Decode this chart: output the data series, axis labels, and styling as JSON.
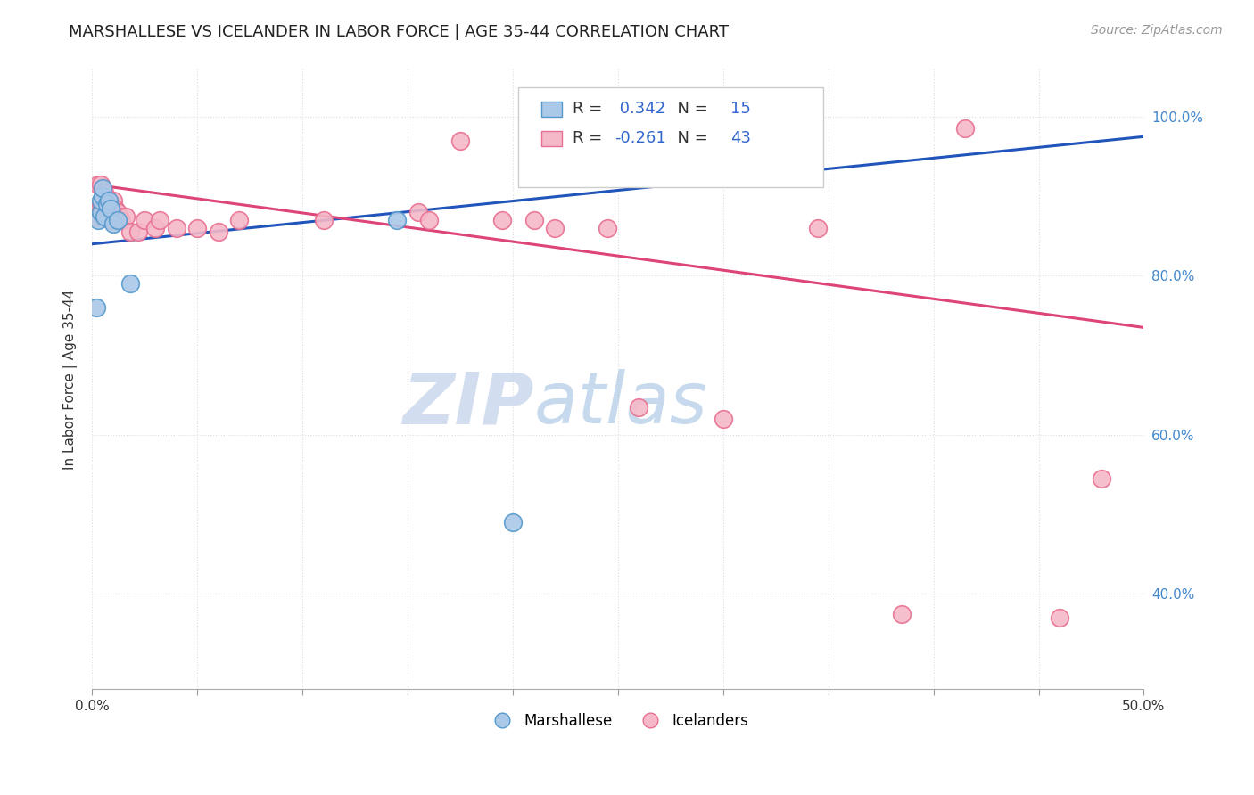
{
  "title": "MARSHALLESE VS ICELANDER IN LABOR FORCE | AGE 35-44 CORRELATION CHART",
  "source": "Source: ZipAtlas.com",
  "ylabel": "In Labor Force | Age 35-44",
  "xlim": [
    0.0,
    0.5
  ],
  "ylim": [
    0.28,
    1.06
  ],
  "yticks": [
    0.4,
    0.6,
    0.8,
    1.0
  ],
  "ytick_labels": [
    "40.0%",
    "60.0%",
    "80.0%",
    "100.0%"
  ],
  "xticks": [
    0.0,
    0.05,
    0.1,
    0.15,
    0.2,
    0.25,
    0.3,
    0.35,
    0.4,
    0.45,
    0.5
  ],
  "xtick_labels": [
    "0.0%",
    "",
    "",
    "",
    "",
    "",
    "",
    "",
    "",
    "",
    "50.0%"
  ],
  "marshallese_x": [
    0.002,
    0.003,
    0.004,
    0.004,
    0.005,
    0.005,
    0.006,
    0.007,
    0.008,
    0.009,
    0.01,
    0.012,
    0.018,
    0.145,
    0.2
  ],
  "marshallese_y": [
    0.76,
    0.87,
    0.88,
    0.895,
    0.9,
    0.91,
    0.875,
    0.89,
    0.895,
    0.885,
    0.865,
    0.87,
    0.79,
    0.87,
    0.49
  ],
  "icelander_x": [
    0.001,
    0.002,
    0.003,
    0.004,
    0.004,
    0.005,
    0.005,
    0.006,
    0.006,
    0.007,
    0.008,
    0.008,
    0.009,
    0.01,
    0.011,
    0.012,
    0.013,
    0.014,
    0.016,
    0.018,
    0.022,
    0.025,
    0.03,
    0.032,
    0.04,
    0.05,
    0.06,
    0.07,
    0.11,
    0.155,
    0.16,
    0.175,
    0.195,
    0.21,
    0.22,
    0.245,
    0.26,
    0.3,
    0.345,
    0.385,
    0.415,
    0.46,
    0.48
  ],
  "icelander_y": [
    0.885,
    0.875,
    0.915,
    0.89,
    0.915,
    0.875,
    0.895,
    0.88,
    0.905,
    0.88,
    0.88,
    0.895,
    0.87,
    0.895,
    0.885,
    0.88,
    0.875,
    0.87,
    0.875,
    0.855,
    0.855,
    0.87,
    0.86,
    0.87,
    0.86,
    0.86,
    0.855,
    0.87,
    0.87,
    0.88,
    0.87,
    0.97,
    0.87,
    0.87,
    0.86,
    0.86,
    0.635,
    0.62,
    0.86,
    0.375,
    0.985,
    0.37,
    0.545
  ],
  "marshallese_color": "#aac8e8",
  "marshallese_edge_color": "#5599cc",
  "icelander_color": "#f5b8c8",
  "icelander_edge_color": "#e87090",
  "blue_line_x0": 0.0,
  "blue_line_x1": 0.5,
  "blue_line_y0": 0.84,
  "blue_line_y1": 0.975,
  "pink_line_x0": 0.0,
  "pink_line_x1": 0.5,
  "pink_line_y0": 0.915,
  "pink_line_y1": 0.735,
  "R_marshallese": "0.342",
  "N_marshallese": "15",
  "R_icelander": "-0.261",
  "N_icelander": "43",
  "legend_label_marshallese": "Marshallese",
  "legend_label_icelander": "Icelanders",
  "title_fontsize": 13,
  "axis_label_fontsize": 11,
  "tick_fontsize": 11,
  "source_fontsize": 10,
  "background_color": "#ffffff",
  "grid_color": "#dddddd",
  "right_tick_color": "#4488cc",
  "title_color": "#222222"
}
